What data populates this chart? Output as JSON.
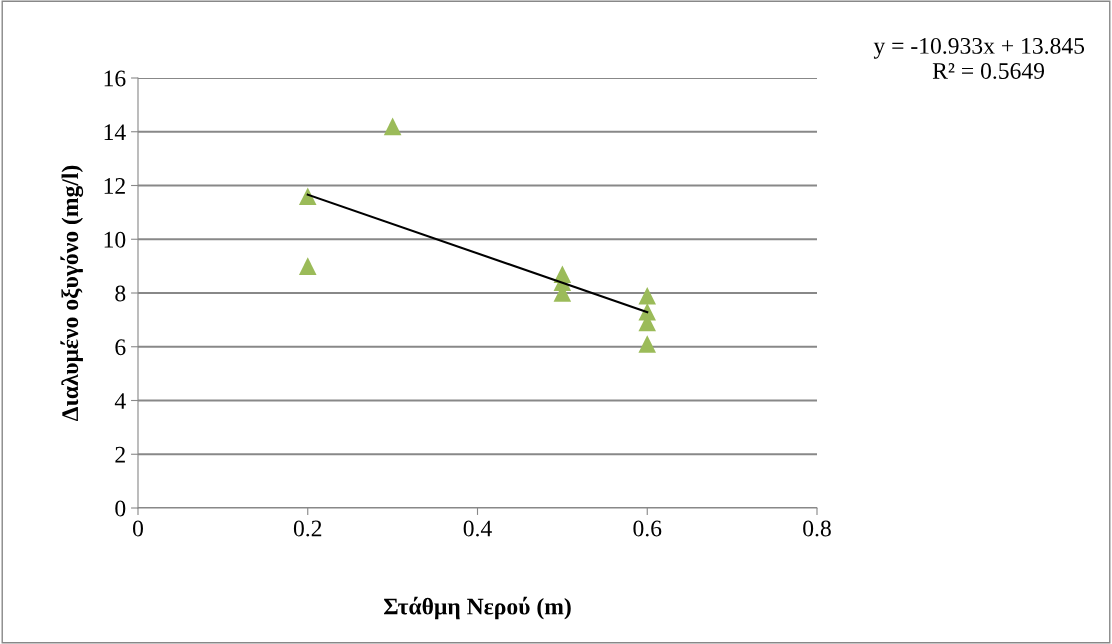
{
  "chart_data": {
    "type": "scatter",
    "xlabel": "Στάθμη Νερού (m)",
    "ylabel": "Διαλυμένο οξυγόνο (mg/l)",
    "annotations": [
      "y = -10.933x + 13.845",
      "R² = 0.5649"
    ],
    "series": [
      {
        "color": "#9bbb59",
        "marker": "triangle",
        "x": [
          0.2,
          0.2,
          0.3,
          0.5,
          0.5,
          0.5,
          0.6,
          0.6,
          0.6,
          0.6
        ],
        "values": [
          9.0,
          11.6,
          14.2,
          8.7,
          8.4,
          8.0,
          7.9,
          7.3,
          6.9,
          6.1
        ]
      },
      {
        "type": "line",
        "color": "#000000",
        "x": [
          0.2,
          0.6
        ],
        "values": [
          11.66,
          7.29
        ]
      }
    ],
    "xlim": [
      0,
      0.8
    ],
    "xticks": [
      0,
      0.2,
      0.4,
      0.6,
      0.8
    ],
    "ylim": [
      0,
      16
    ],
    "yticks": [
      0,
      2,
      4,
      6,
      8,
      10,
      12,
      14,
      16
    ],
    "grid": "y"
  }
}
